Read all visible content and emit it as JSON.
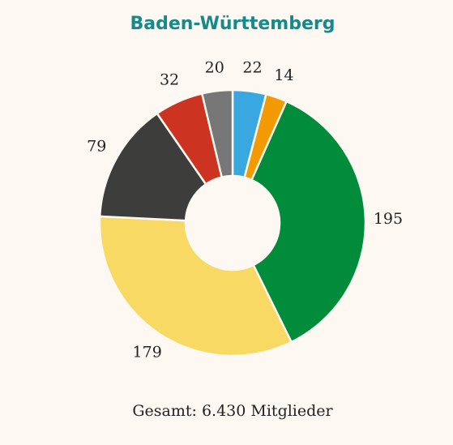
{
  "chart_data": {
    "type": "donut",
    "title": "Baden-Württemberg",
    "footer": "Gesamt: 6.430 Mitglieder",
    "values": [
      22,
      14,
      195,
      179,
      79,
      32,
      20
    ],
    "colors": [
      "#3aa8e0",
      "#f29a00",
      "#008c3a",
      "#f8d964",
      "#3d3d3b",
      "#cc3320",
      "#777777"
    ]
  }
}
